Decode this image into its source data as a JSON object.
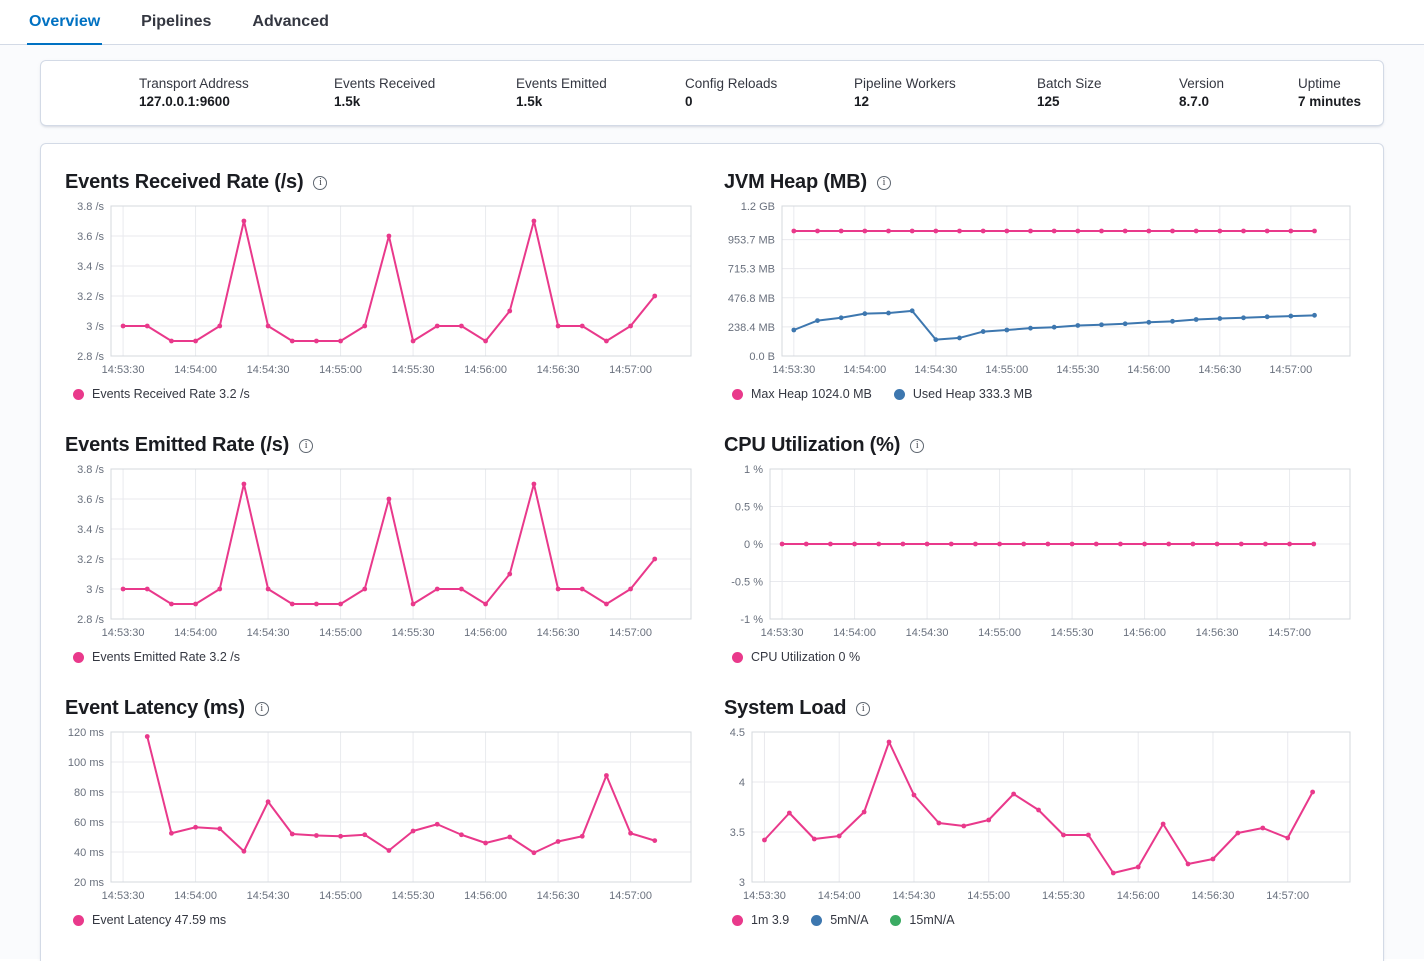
{
  "tabs": [
    {
      "label": "Overview",
      "active": true
    },
    {
      "label": "Pipelines",
      "active": false
    },
    {
      "label": "Advanced",
      "active": false
    }
  ],
  "icons": {
    "info_glyph": "i"
  },
  "colors": {
    "accent_blue": "#0071c2",
    "pink": "#e9398b",
    "blue": "#3d77af",
    "green": "#3bab63"
  },
  "stats": {
    "items": [
      {
        "label": "Transport Address",
        "value": "127.0.0.1:9600"
      },
      {
        "label": "Events Received",
        "value": "1.5k"
      },
      {
        "label": "Events Emitted",
        "value": "1.5k"
      },
      {
        "label": "Config Reloads",
        "value": "0"
      },
      {
        "label": "Pipeline Workers",
        "value": "12"
      },
      {
        "label": "Batch Size",
        "value": "125"
      },
      {
        "label": "Version",
        "value": "8.7.0"
      },
      {
        "label": "Uptime",
        "value": "7 minutes"
      }
    ]
  },
  "axis": {
    "x_domain": [
      "14:53:25",
      "14:57:25"
    ]
  },
  "chart_data": [
    {
      "type": "line",
      "title": "Events Received Rate (/s)",
      "x_ticks": [
        "14:53:30",
        "14:54:00",
        "14:54:30",
        "14:55:00",
        "14:55:30",
        "14:56:00",
        "14:56:30",
        "14:57:00"
      ],
      "y_ticks": [
        {
          "label": "3.8 /s",
          "value": 3.8
        },
        {
          "label": "3.6 /s",
          "value": 3.6
        },
        {
          "label": "3.4 /s",
          "value": 3.4
        },
        {
          "label": "3.2 /s",
          "value": 3.2
        },
        {
          "label": "3 /s",
          "value": 3
        },
        {
          "label": "2.8 /s",
          "value": 2.8
        }
      ],
      "times": [
        "14:53:30",
        "14:53:40",
        "14:53:50",
        "14:54:00",
        "14:54:10",
        "14:54:20",
        "14:54:30",
        "14:54:40",
        "14:54:50",
        "14:55:00",
        "14:55:10",
        "14:55:20",
        "14:55:30",
        "14:55:40",
        "14:55:50",
        "14:56:00",
        "14:56:10",
        "14:56:20",
        "14:56:30",
        "14:56:40",
        "14:56:50",
        "14:57:00",
        "14:57:10"
      ],
      "series": [
        {
          "name": "Events Received Rate",
          "color": "#e9398b",
          "values": [
            3,
            3,
            2.9,
            2.9,
            3,
            3.7,
            3,
            2.9,
            2.9,
            2.9,
            3,
            3.6,
            2.9,
            3,
            3,
            2.9,
            3.1,
            3.7,
            3,
            3,
            2.9,
            3,
            3.2
          ]
        }
      ],
      "legend": [
        {
          "label": "Events Received Rate 3.2 /s",
          "color": "#e9398b"
        }
      ]
    },
    {
      "type": "line",
      "title": "JVM Heap (MB)",
      "x_ticks": [
        "14:53:30",
        "14:54:00",
        "14:54:30",
        "14:55:00",
        "14:55:30",
        "14:56:00",
        "14:56:30",
        "14:57:00"
      ],
      "y_ticks": [
        {
          "label": "1.2 GB",
          "value": 1228.8
        },
        {
          "label": "953.7 MB",
          "value": 953.7
        },
        {
          "label": "715.3 MB",
          "value": 715.3
        },
        {
          "label": "476.8 MB",
          "value": 476.8
        },
        {
          "label": "238.4 MB",
          "value": 238.4
        },
        {
          "label": "0.0 B",
          "value": 0
        }
      ],
      "times": [
        "14:53:30",
        "14:53:40",
        "14:53:50",
        "14:54:00",
        "14:54:10",
        "14:54:20",
        "14:54:30",
        "14:54:40",
        "14:54:50",
        "14:55:00",
        "14:55:10",
        "14:55:20",
        "14:55:30",
        "14:55:40",
        "14:55:50",
        "14:56:00",
        "14:56:10",
        "14:56:20",
        "14:56:30",
        "14:56:40",
        "14:56:50",
        "14:57:00",
        "14:57:10"
      ],
      "series": [
        {
          "name": "Max Heap",
          "color": "#e9398b",
          "values": [
            1024,
            1024,
            1024,
            1024,
            1024,
            1024,
            1024,
            1024,
            1024,
            1024,
            1024,
            1024,
            1024,
            1024,
            1024,
            1024,
            1024,
            1024,
            1024,
            1024,
            1024,
            1024,
            1024
          ]
        },
        {
          "name": "Used Heap",
          "color": "#3d77af",
          "values": [
            213,
            290,
            313,
            347,
            352,
            370,
            134,
            148,
            200,
            213,
            228,
            236,
            250,
            256,
            264,
            276,
            284,
            299,
            307,
            313,
            321,
            327,
            333.3
          ]
        }
      ],
      "legend": [
        {
          "label": "Max Heap 1024.0 MB",
          "color": "#e9398b"
        },
        {
          "label": "Used Heap 333.3 MB",
          "color": "#3d77af"
        }
      ]
    },
    {
      "type": "line",
      "title": "Events Emitted Rate (/s)",
      "x_ticks": [
        "14:53:30",
        "14:54:00",
        "14:54:30",
        "14:55:00",
        "14:55:30",
        "14:56:00",
        "14:56:30",
        "14:57:00"
      ],
      "y_ticks": [
        {
          "label": "3.8 /s",
          "value": 3.8
        },
        {
          "label": "3.6 /s",
          "value": 3.6
        },
        {
          "label": "3.4 /s",
          "value": 3.4
        },
        {
          "label": "3.2 /s",
          "value": 3.2
        },
        {
          "label": "3 /s",
          "value": 3
        },
        {
          "label": "2.8 /s",
          "value": 2.8
        }
      ],
      "times": [
        "14:53:30",
        "14:53:40",
        "14:53:50",
        "14:54:00",
        "14:54:10",
        "14:54:20",
        "14:54:30",
        "14:54:40",
        "14:54:50",
        "14:55:00",
        "14:55:10",
        "14:55:20",
        "14:55:30",
        "14:55:40",
        "14:55:50",
        "14:56:00",
        "14:56:10",
        "14:56:20",
        "14:56:30",
        "14:56:40",
        "14:56:50",
        "14:57:00",
        "14:57:10"
      ],
      "series": [
        {
          "name": "Events Emitted Rate",
          "color": "#e9398b",
          "values": [
            3,
            3,
            2.9,
            2.9,
            3,
            3.7,
            3,
            2.9,
            2.9,
            2.9,
            3,
            3.6,
            2.9,
            3,
            3,
            2.9,
            3.1,
            3.7,
            3,
            3,
            2.9,
            3,
            3.2
          ]
        }
      ],
      "legend": [
        {
          "label": "Events Emitted Rate 3.2 /s",
          "color": "#e9398b"
        }
      ]
    },
    {
      "type": "line",
      "title": "CPU Utilization (%)",
      "x_ticks": [
        "14:53:30",
        "14:54:00",
        "14:54:30",
        "14:55:00",
        "14:55:30",
        "14:56:00",
        "14:56:30",
        "14:57:00"
      ],
      "y_ticks": [
        {
          "label": "1 %",
          "value": 1
        },
        {
          "label": "0.5 %",
          "value": 0.5
        },
        {
          "label": "0 %",
          "value": 0
        },
        {
          "label": "-0.5 %",
          "value": -0.5
        },
        {
          "label": "-1 %",
          "value": -1
        }
      ],
      "times": [
        "14:53:30",
        "14:53:40",
        "14:53:50",
        "14:54:00",
        "14:54:10",
        "14:54:20",
        "14:54:30",
        "14:54:40",
        "14:54:50",
        "14:55:00",
        "14:55:10",
        "14:55:20",
        "14:55:30",
        "14:55:40",
        "14:55:50",
        "14:56:00",
        "14:56:10",
        "14:56:20",
        "14:56:30",
        "14:56:40",
        "14:56:50",
        "14:57:00",
        "14:57:10"
      ],
      "series": [
        {
          "name": "CPU Utilization",
          "color": "#e9398b",
          "values": [
            0,
            0,
            0,
            0,
            0,
            0,
            0,
            0,
            0,
            0,
            0,
            0,
            0,
            0,
            0,
            0,
            0,
            0,
            0,
            0,
            0,
            0,
            0
          ]
        }
      ],
      "legend": [
        {
          "label": "CPU Utilization 0 %",
          "color": "#e9398b"
        }
      ]
    },
    {
      "type": "line",
      "title": "Event Latency (ms)",
      "x_ticks": [
        "14:53:30",
        "14:54:00",
        "14:54:30",
        "14:55:00",
        "14:55:30",
        "14:56:00",
        "14:56:30",
        "14:57:00"
      ],
      "y_ticks": [
        {
          "label": "120 ms",
          "value": 120
        },
        {
          "label": "100 ms",
          "value": 100
        },
        {
          "label": "80 ms",
          "value": 80
        },
        {
          "label": "60 ms",
          "value": 60
        },
        {
          "label": "40 ms",
          "value": 40
        },
        {
          "label": "20 ms",
          "value": 20
        }
      ],
      "times": [
        "14:53:40",
        "14:53:50",
        "14:54:00",
        "14:54:10",
        "14:54:20",
        "14:54:30",
        "14:54:40",
        "14:54:50",
        "14:55:00",
        "14:55:10",
        "14:55:20",
        "14:55:30",
        "14:55:40",
        "14:55:50",
        "14:56:00",
        "14:56:10",
        "14:56:20",
        "14:56:30",
        "14:56:40",
        "14:56:50",
        "14:57:00",
        "14:57:10"
      ],
      "series": [
        {
          "name": "Event Latency",
          "color": "#e9398b",
          "values": [
            117,
            52.5,
            56.5,
            55.5,
            40.5,
            73.5,
            52,
            51,
            50.5,
            51.5,
            41,
            54,
            58.5,
            51.5,
            46,
            50,
            39.5,
            47,
            50.5,
            91,
            52.5,
            47.59
          ]
        }
      ],
      "legend": [
        {
          "label": "Event Latency 47.59 ms",
          "color": "#e9398b"
        }
      ]
    },
    {
      "type": "line",
      "title": "System Load",
      "x_ticks": [
        "14:53:30",
        "14:54:00",
        "14:54:30",
        "14:55:00",
        "14:55:30",
        "14:56:00",
        "14:56:30",
        "14:57:00"
      ],
      "y_ticks": [
        {
          "label": "4.5",
          "value": 4.5
        },
        {
          "label": "4",
          "value": 4
        },
        {
          "label": "3.5",
          "value": 3.5
        },
        {
          "label": "3",
          "value": 3
        }
      ],
      "times": [
        "14:53:30",
        "14:53:40",
        "14:53:50",
        "14:54:00",
        "14:54:10",
        "14:54:20",
        "14:54:30",
        "14:54:40",
        "14:54:50",
        "14:55:00",
        "14:55:10",
        "14:55:20",
        "14:55:30",
        "14:55:40",
        "14:55:50",
        "14:56:00",
        "14:56:10",
        "14:56:20",
        "14:56:30",
        "14:56:40",
        "14:56:50",
        "14:57:00",
        "14:57:10"
      ],
      "series": [
        {
          "name": "1m",
          "color": "#e9398b",
          "values": [
            3.42,
            3.69,
            3.43,
            3.46,
            3.7,
            4.4,
            3.87,
            3.59,
            3.56,
            3.62,
            3.88,
            3.72,
            3.47,
            3.47,
            3.09,
            3.15,
            3.58,
            3.18,
            3.23,
            3.49,
            3.54,
            3.44,
            3.9
          ]
        }
      ],
      "legend": [
        {
          "label": "1m 3.9",
          "color": "#e9398b"
        },
        {
          "label": "5mN/A",
          "color": "#3d77af"
        },
        {
          "label": "15mN/A",
          "color": "#3bab63"
        }
      ]
    }
  ]
}
